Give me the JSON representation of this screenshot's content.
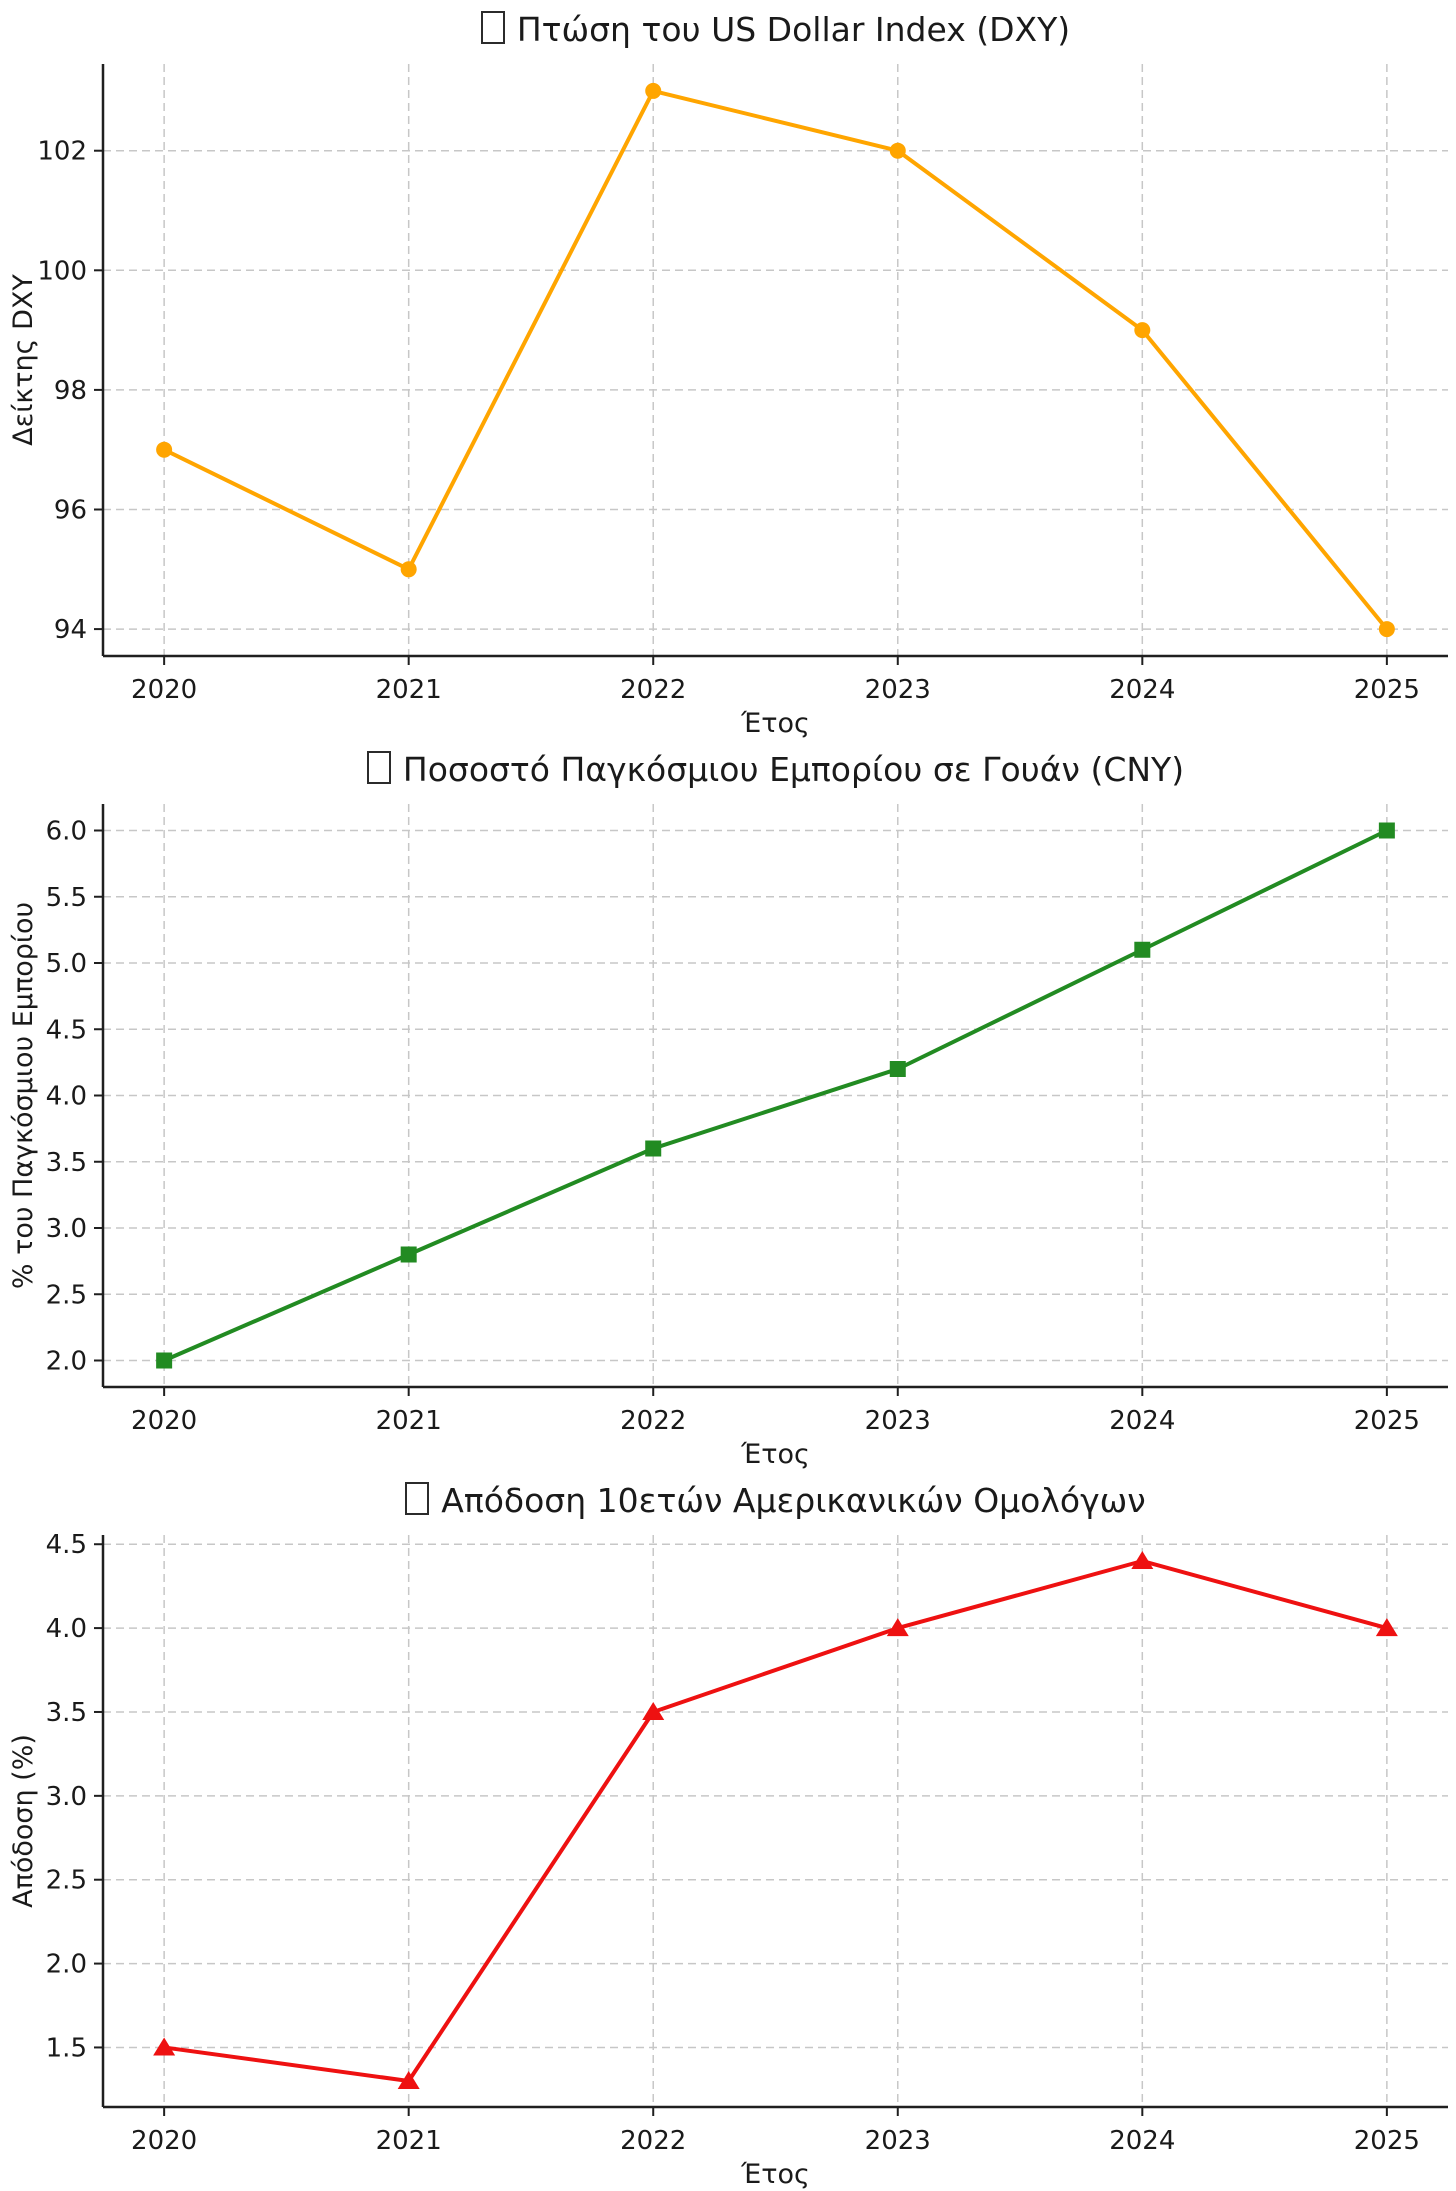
{
  "figure": {
    "background": "#ffffff",
    "text_color": "#1a1a1a",
    "grid_color": "#c7c7c7",
    "spine_color": "#1f1f1f",
    "grid_style": "dashed",
    "legend": "none"
  },
  "chart_data": [
    {
      "type": "line",
      "title": "Πτώση του US Dollar Index (DXY)",
      "title_has_missing_glyph_box": true,
      "xlabel": "Έτος",
      "ylabel": "Δείκτης DXY",
      "x": [
        2020,
        2021,
        2022,
        2023,
        2024,
        2025
      ],
      "xtick_labels": [
        "2020",
        "2021",
        "2022",
        "2023",
        "2024",
        "2025"
      ],
      "values": [
        97,
        95,
        103,
        102,
        99,
        94
      ],
      "yticks": [
        94,
        96,
        98,
        100,
        102
      ],
      "ytick_labels": [
        "94",
        "96",
        "98",
        "100",
        "102"
      ],
      "ylim": [
        93.55,
        103.45
      ],
      "xlim": [
        2019.75,
        2025.25
      ],
      "series_color": "#FFA500",
      "marker": "circle",
      "grid": true
    },
    {
      "type": "line",
      "title": "Ποσοστό Παγκόσμιου Εμπορίου σε Γουάν (CNY)",
      "title_has_missing_glyph_box": true,
      "xlabel": "Έτος",
      "ylabel": "% του Παγκόσμιου Εμπορίου",
      "x": [
        2020,
        2021,
        2022,
        2023,
        2024,
        2025
      ],
      "xtick_labels": [
        "2020",
        "2021",
        "2022",
        "2023",
        "2024",
        "2025"
      ],
      "values": [
        2.0,
        2.8,
        3.6,
        4.2,
        5.1,
        6.0
      ],
      "yticks": [
        2.0,
        2.5,
        3.0,
        3.5,
        4.0,
        4.5,
        5.0,
        5.5,
        6.0
      ],
      "ytick_labels": [
        "2.0",
        "2.5",
        "3.0",
        "3.5",
        "4.0",
        "4.5",
        "5.0",
        "5.5",
        "6.0"
      ],
      "ylim": [
        1.8,
        6.2
      ],
      "xlim": [
        2019.75,
        2025.25
      ],
      "series_color": "#228B22",
      "marker": "square",
      "grid": true
    },
    {
      "type": "line",
      "title": "Απόδοση 10ετών Αμερικανικών Ομολόγων",
      "title_has_missing_glyph_box": true,
      "xlabel": "Έτος",
      "ylabel": "Απόδοση (%)",
      "x": [
        2020,
        2021,
        2022,
        2023,
        2024,
        2025
      ],
      "xtick_labels": [
        "2020",
        "2021",
        "2022",
        "2023",
        "2024",
        "2025"
      ],
      "values": [
        1.5,
        1.3,
        3.5,
        4.0,
        4.4,
        4.0
      ],
      "yticks": [
        1.5,
        2.0,
        2.5,
        3.0,
        3.5,
        4.0,
        4.5
      ],
      "ytick_labels": [
        "1.5",
        "2.0",
        "2.5",
        "3.0",
        "3.5",
        "4.0",
        "4.5"
      ],
      "ylim": [
        1.145,
        4.555
      ],
      "xlim": [
        2019.75,
        2025.25
      ],
      "series_color": "#EE1111",
      "marker": "triangle",
      "grid": true
    }
  ]
}
